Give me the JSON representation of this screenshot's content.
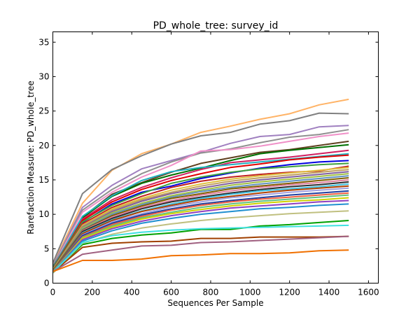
{
  "chart_data": {
    "type": "line",
    "title": "PD_whole_tree: survey_id",
    "xlabel": "Sequences Per Sample",
    "ylabel": "Rarefaction Measure: PD_whole_tree",
    "xlim": [
      0,
      1650
    ],
    "ylim": [
      0,
      36.5
    ],
    "xticks": [
      0,
      200,
      400,
      600,
      800,
      1000,
      1200,
      1400,
      1600
    ],
    "yticks": [
      0,
      5,
      10,
      15,
      20,
      25,
      30,
      35
    ],
    "grid": false,
    "legend": "none",
    "x": [
      1,
      150,
      300,
      450,
      600,
      750,
      900,
      1050,
      1200,
      1350,
      1500
    ],
    "series": [
      {
        "color": "#ffb366",
        "values": [
          2.8,
          11.6,
          16.4,
          18.8,
          20.2,
          21.9,
          22.8,
          23.8,
          24.6,
          25.9,
          26.7
        ]
      },
      {
        "color": "#808080",
        "values": [
          3.0,
          13.0,
          16.5,
          18.5,
          20.2,
          21.4,
          21.9,
          23.1,
          23.6,
          24.7,
          24.6
        ]
      },
      {
        "color": "#a080c0",
        "values": [
          2.6,
          11.0,
          14.2,
          16.6,
          17.8,
          19.0,
          20.3,
          21.3,
          21.6,
          22.7,
          22.9
        ]
      },
      {
        "color": "#909090",
        "values": [
          2.5,
          10.6,
          13.6,
          15.9,
          17.6,
          18.9,
          19.5,
          20.4,
          21.2,
          21.6,
          22.3
        ]
      },
      {
        "color": "#f090c8",
        "values": [
          2.4,
          10.3,
          13.2,
          15.4,
          17.1,
          19.2,
          19.4,
          19.9,
          20.6,
          21.3,
          21.8
        ]
      },
      {
        "color": "#604020",
        "values": [
          2.3,
          9.6,
          12.9,
          14.6,
          16.1,
          17.4,
          18.2,
          19.0,
          19.4,
          20.0,
          20.6
        ]
      },
      {
        "color": "#007000",
        "values": [
          2.4,
          9.5,
          12.6,
          14.5,
          15.7,
          16.7,
          17.8,
          18.8,
          19.3,
          19.7,
          20.1
        ]
      },
      {
        "color": "#d02060",
        "values": [
          2.2,
          9.3,
          12.1,
          13.9,
          15.3,
          16.5,
          17.5,
          17.9,
          18.3,
          18.8,
          19.3
        ]
      },
      {
        "color": "#20b0c0",
        "values": [
          2.3,
          9.7,
          12.7,
          14.9,
          16.2,
          16.8,
          17.2,
          17.6,
          18.0,
          18.4,
          18.8
        ]
      },
      {
        "color": "#e00000",
        "values": [
          2.2,
          9.1,
          11.8,
          13.6,
          14.9,
          15.9,
          16.8,
          17.3,
          17.9,
          18.3,
          18.6
        ]
      },
      {
        "color": "#0000e0",
        "values": [
          2.1,
          8.8,
          11.5,
          13.2,
          14.1,
          15.2,
          16.0,
          16.7,
          17.2,
          17.6,
          17.8
        ]
      },
      {
        "color": "#40a040",
        "values": [
          2.1,
          8.9,
          11.3,
          13.0,
          14.5,
          15.4,
          16.1,
          16.6,
          16.9,
          17.2,
          17.4
        ]
      },
      {
        "color": "#c02020",
        "values": [
          2.0,
          8.6,
          11.0,
          12.6,
          13.9,
          14.8,
          15.4,
          15.8,
          16.1,
          16.3,
          17.0
        ]
      },
      {
        "color": "#e0c040",
        "values": [
          2.0,
          8.4,
          10.8,
          12.3,
          13.5,
          14.4,
          15.1,
          15.6,
          16.0,
          16.4,
          16.8
        ]
      },
      {
        "color": "#c0a060",
        "values": [
          2.0,
          8.3,
          10.6,
          12.1,
          13.2,
          14.1,
          14.8,
          15.3,
          15.7,
          16.1,
          16.5
        ]
      },
      {
        "color": "#8060a0",
        "values": [
          1.9,
          8.1,
          10.4,
          11.9,
          13.0,
          13.8,
          14.5,
          15.0,
          15.4,
          15.8,
          16.2
        ]
      },
      {
        "color": "#a0c040",
        "values": [
          1.9,
          8.0,
          10.2,
          11.6,
          12.7,
          13.5,
          14.2,
          14.7,
          15.1,
          15.5,
          15.9
        ]
      },
      {
        "color": "#6090c0",
        "values": [
          1.9,
          7.8,
          10.0,
          11.4,
          12.5,
          13.3,
          13.9,
          14.4,
          14.8,
          15.2,
          15.6
        ]
      },
      {
        "color": "#806000",
        "values": [
          1.9,
          7.7,
          9.8,
          11.2,
          12.3,
          13.0,
          13.7,
          14.1,
          14.5,
          14.9,
          15.3
        ]
      },
      {
        "color": "#e080a0",
        "values": [
          1.8,
          7.6,
          9.6,
          11.0,
          12.0,
          12.8,
          13.4,
          13.9,
          14.3,
          14.6,
          15.0
        ]
      },
      {
        "color": "#303030",
        "values": [
          1.8,
          7.5,
          9.4,
          10.8,
          11.8,
          12.5,
          13.1,
          13.6,
          14.0,
          14.3,
          14.7
        ]
      },
      {
        "color": "#40c0e0",
        "values": [
          1.8,
          7.3,
          9.2,
          10.5,
          11.5,
          12.3,
          12.9,
          13.4,
          13.7,
          14.0,
          14.4
        ]
      },
      {
        "color": "#b04000",
        "values": [
          1.8,
          7.2,
          9.1,
          10.4,
          11.3,
          12.1,
          12.6,
          13.1,
          13.5,
          13.8,
          14.1
        ]
      },
      {
        "color": "#a0a0e0",
        "values": [
          1.7,
          7.0,
          8.9,
          10.1,
          11.1,
          11.8,
          12.4,
          12.8,
          13.2,
          13.5,
          13.8
        ]
      },
      {
        "color": "#2040a0",
        "values": [
          1.7,
          6.9,
          8.7,
          9.9,
          10.8,
          11.5,
          12.0,
          12.4,
          12.8,
          13.1,
          13.4
        ]
      },
      {
        "color": "#f06040",
        "values": [
          1.7,
          6.7,
          8.5,
          9.7,
          10.6,
          11.3,
          11.8,
          12.2,
          12.5,
          12.8,
          13.1
        ]
      },
      {
        "color": "#60c080",
        "values": [
          1.7,
          6.6,
          8.3,
          9.5,
          10.3,
          11.0,
          11.5,
          11.9,
          12.2,
          12.5,
          12.8
        ]
      },
      {
        "color": "#d0d000",
        "values": [
          1.6,
          6.5,
          8.1,
          9.3,
          10.1,
          10.7,
          11.2,
          11.6,
          11.9,
          12.1,
          12.4
        ]
      },
      {
        "color": "#9040c0",
        "values": [
          1.6,
          6.3,
          7.9,
          9.0,
          9.8,
          10.4,
          10.9,
          11.2,
          11.5,
          11.8,
          12.0
        ]
      },
      {
        "color": "#2090d0",
        "values": [
          1.6,
          6.1,
          7.6,
          8.7,
          9.4,
          10.0,
          10.4,
          10.8,
          11.0,
          11.3,
          11.5
        ]
      },
      {
        "color": "#00a000",
        "values": [
          1.5,
          5.6,
          6.5,
          7.0,
          7.3,
          7.8,
          7.8,
          8.3,
          8.5,
          8.8,
          9.1
        ]
      },
      {
        "color": "#c0c080",
        "values": [
          1.5,
          5.8,
          7.1,
          8.0,
          8.6,
          9.1,
          9.5,
          9.8,
          10.1,
          10.3,
          10.5
        ]
      },
      {
        "color": "#a04000",
        "values": [
          1.6,
          5.2,
          5.8,
          6.0,
          6.1,
          6.5,
          6.5,
          6.7,
          6.7,
          6.7,
          6.8
        ]
      },
      {
        "color": "#40e0e0",
        "values": [
          1.6,
          5.9,
          6.9,
          7.4,
          7.7,
          7.9,
          8.0,
          8.1,
          8.2,
          8.3,
          8.4
        ]
      },
      {
        "color": "#a06080",
        "values": [
          1.7,
          4.2,
          4.8,
          5.4,
          5.5,
          5.9,
          6.0,
          6.2,
          6.4,
          6.6,
          6.8
        ]
      },
      {
        "color": "#f07000",
        "values": [
          1.7,
          3.3,
          3.3,
          3.5,
          4.0,
          4.1,
          4.3,
          4.3,
          4.4,
          4.7,
          4.8
        ]
      }
    ]
  }
}
